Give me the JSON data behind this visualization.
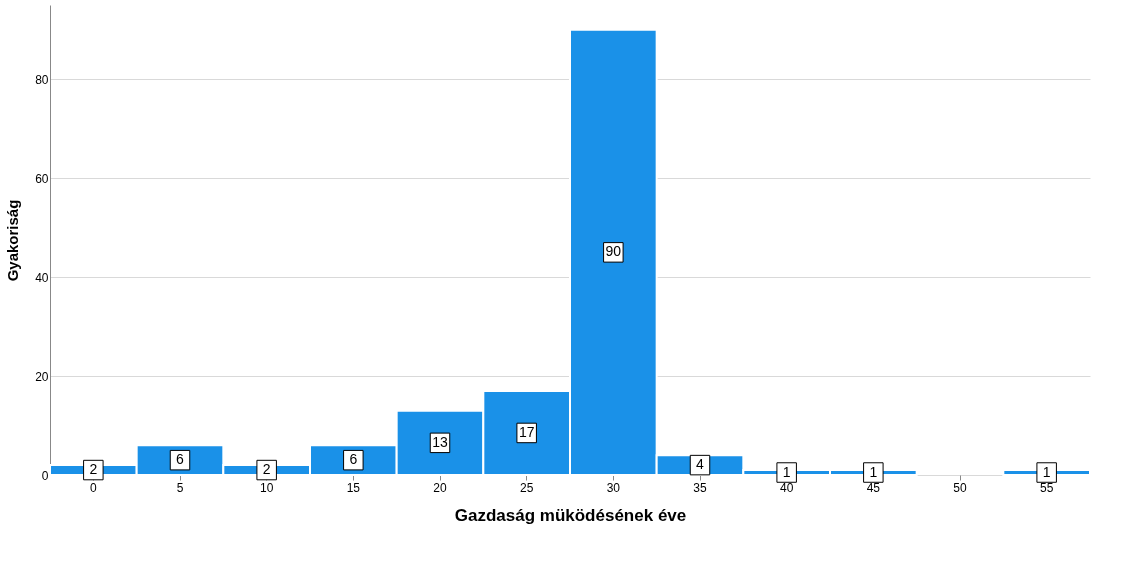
{
  "chart_data": {
    "type": "bar",
    "xlabel": "Gazdaság müködésének éve",
    "ylabel": "Gyakoriság",
    "categories": [
      "0",
      "5",
      "10",
      "15",
      "20",
      "25",
      "30",
      "35",
      "40",
      "45",
      "50",
      "55"
    ],
    "values": [
      2,
      6,
      2,
      6,
      13,
      17,
      90,
      4,
      1,
      1,
      null,
      1
    ],
    "color": "#1a91e8",
    "ylim": [
      0,
      95
    ],
    "yticks": [
      0,
      20,
      40,
      60,
      80
    ],
    "grid": "y",
    "data_labels": true
  }
}
